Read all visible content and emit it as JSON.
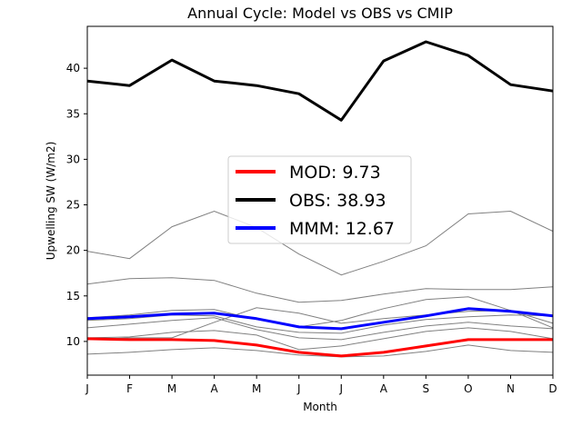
{
  "chart_data": {
    "type": "line",
    "title": "Annual Cycle: Model vs OBS vs CMIP",
    "xlabel": "Month",
    "ylabel": "Upwelling SW (W/m2)",
    "categories": [
      "J",
      "F",
      "M",
      "A",
      "M",
      "J",
      "J",
      "A",
      "S",
      "O",
      "N",
      "D"
    ],
    "ylim": [
      6.3,
      44.6
    ],
    "yticks": [
      10,
      15,
      20,
      25,
      30,
      35,
      40
    ],
    "grid": false,
    "legend_placement": "center",
    "series": [
      {
        "name": "MOD: 9.73",
        "color": "#ff0000",
        "width": 3,
        "values": [
          10.3,
          10.2,
          10.2,
          10.1,
          9.6,
          8.8,
          8.4,
          8.8,
          9.5,
          10.2,
          10.2,
          10.2
        ]
      },
      {
        "name": "OBS: 38.93",
        "color": "#000000",
        "width": 3,
        "values": [
          38.6,
          38.1,
          40.9,
          38.6,
          38.1,
          37.2,
          34.3,
          40.8,
          42.9,
          41.4,
          38.2,
          37.5
        ]
      },
      {
        "name": "MMM: 12.67",
        "color": "#0000ff",
        "width": 3,
        "values": [
          12.5,
          12.7,
          13.0,
          13.1,
          12.5,
          11.6,
          11.4,
          12.1,
          12.8,
          13.6,
          13.3,
          12.8
        ]
      }
    ],
    "ensemble_color": "#808080",
    "ensemble": [
      [
        19.9,
        19.1,
        22.6,
        24.3,
        22.5,
        19.6,
        17.3,
        18.8,
        20.5,
        24.0,
        24.3,
        22.1
      ],
      [
        16.3,
        16.9,
        17.0,
        16.7,
        15.3,
        14.3,
        14.5,
        15.2,
        15.8,
        15.7,
        15.7,
        16.0
      ],
      [
        12.6,
        12.9,
        13.4,
        13.5,
        12.4,
        11.6,
        12.3,
        13.6,
        14.6,
        14.9,
        13.4,
        12.0
      ],
      [
        12.3,
        12.5,
        12.9,
        12.8,
        11.6,
        11.0,
        10.9,
        11.8,
        12.4,
        12.7,
        12.9,
        12.8
      ],
      [
        11.5,
        11.9,
        12.3,
        12.6,
        11.3,
        10.4,
        10.2,
        11.0,
        11.7,
        12.1,
        11.7,
        11.4
      ],
      [
        10.2,
        10.4,
        10.4,
        12.1,
        13.7,
        13.1,
        12.0,
        12.5,
        12.9,
        13.3,
        13.4,
        11.5
      ],
      [
        10.4,
        10.5,
        11.0,
        11.2,
        10.7,
        9.1,
        9.5,
        10.3,
        11.1,
        11.5,
        11.1,
        10.3
      ],
      [
        8.6,
        8.8,
        9.1,
        9.3,
        9.0,
        8.5,
        8.3,
        8.4,
        8.9,
        9.6,
        9.0,
        8.8
      ]
    ]
  }
}
